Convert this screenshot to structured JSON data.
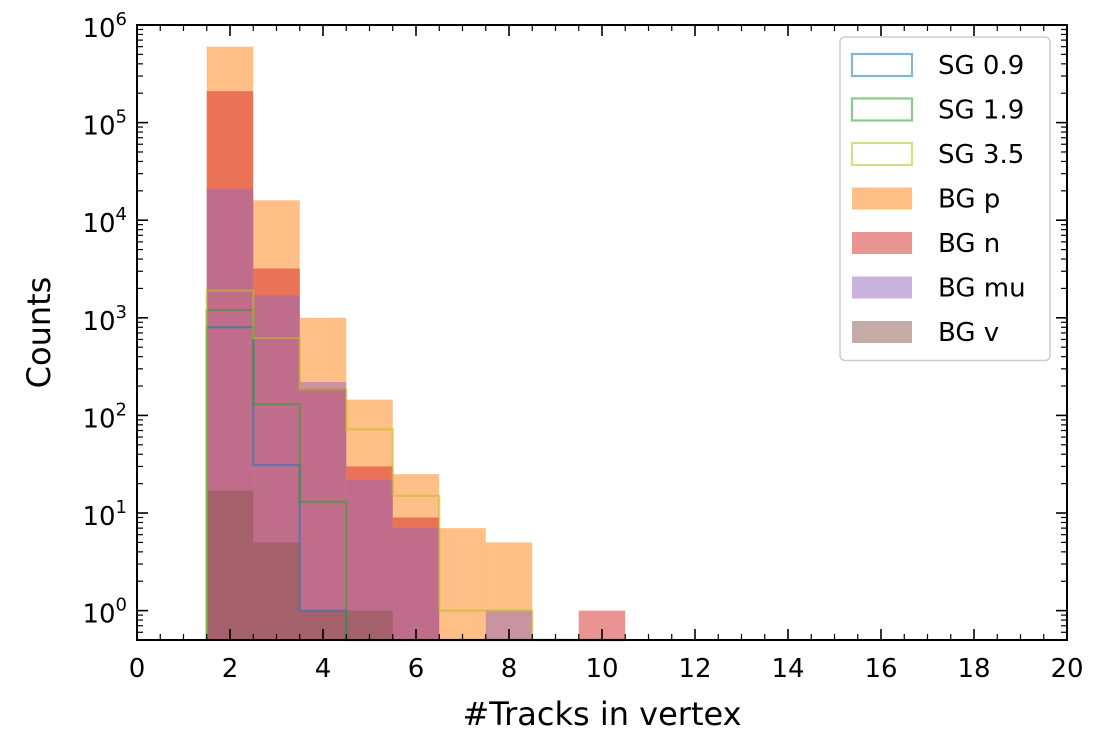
{
  "chart_data": {
    "type": "histogram",
    "xlabel": "#Tracks in vertex",
    "ylabel": "Counts",
    "x_scale": "linear",
    "y_scale": "log",
    "xlim": [
      0,
      20
    ],
    "ylim": [
      0.5,
      1000000
    ],
    "x_ticks": [
      0,
      2,
      4,
      6,
      8,
      10,
      12,
      14,
      16,
      18,
      20
    ],
    "x_tick_labels": [
      "0",
      "2",
      "4",
      "6",
      "8",
      "10",
      "12",
      "14",
      "16",
      "18",
      "20"
    ],
    "y_ticks": [
      1,
      10,
      100,
      1000,
      10000,
      100000,
      1000000
    ],
    "y_tick_labels": [
      {
        "base": "10",
        "exp": "0"
      },
      {
        "base": "10",
        "exp": "1"
      },
      {
        "base": "10",
        "exp": "2"
      },
      {
        "base": "10",
        "exp": "3"
      },
      {
        "base": "10",
        "exp": "4"
      },
      {
        "base": "10",
        "exp": "5"
      },
      {
        "base": "10",
        "exp": "6"
      }
    ],
    "bins": [
      1.5,
      2.5,
      3.5,
      4.5,
      5.5,
      6.5,
      7.5,
      8.5,
      9.5,
      10.5
    ],
    "legend_position": "top-right",
    "grid": false,
    "series": [
      {
        "name": "SG 0.9",
        "style": "step",
        "color": "#1f77b4",
        "values": [
          800,
          31,
          1,
          0,
          0,
          0,
          0,
          0,
          0
        ]
      },
      {
        "name": "SG 1.9",
        "style": "step",
        "color": "#2ca02c",
        "values": [
          1200,
          130,
          13,
          0,
          0,
          0,
          0,
          0,
          0
        ]
      },
      {
        "name": "SG 3.5",
        "style": "step",
        "color": "#bcbd22",
        "values": [
          1900,
          620,
          185,
          72,
          15,
          1,
          1,
          0,
          0
        ]
      },
      {
        "name": "BG p",
        "style": "filled",
        "color": "#ff7f0e",
        "values": [
          600000,
          16000,
          1000,
          145,
          25,
          7,
          5,
          0,
          0
        ]
      },
      {
        "name": "BG n",
        "style": "filled",
        "color": "#d62728",
        "values": [
          210000,
          3200,
          190,
          30,
          9,
          0,
          0,
          0,
          1
        ]
      },
      {
        "name": "BG mu",
        "style": "filled",
        "color": "#9467bd",
        "values": [
          21000,
          1700,
          220,
          22,
          7,
          0,
          1,
          0,
          0
        ]
      },
      {
        "name": "BG v",
        "style": "filled",
        "color": "#8c564b",
        "values": [
          17,
          5,
          1,
          1,
          0,
          0,
          0,
          0,
          0
        ]
      }
    ]
  }
}
